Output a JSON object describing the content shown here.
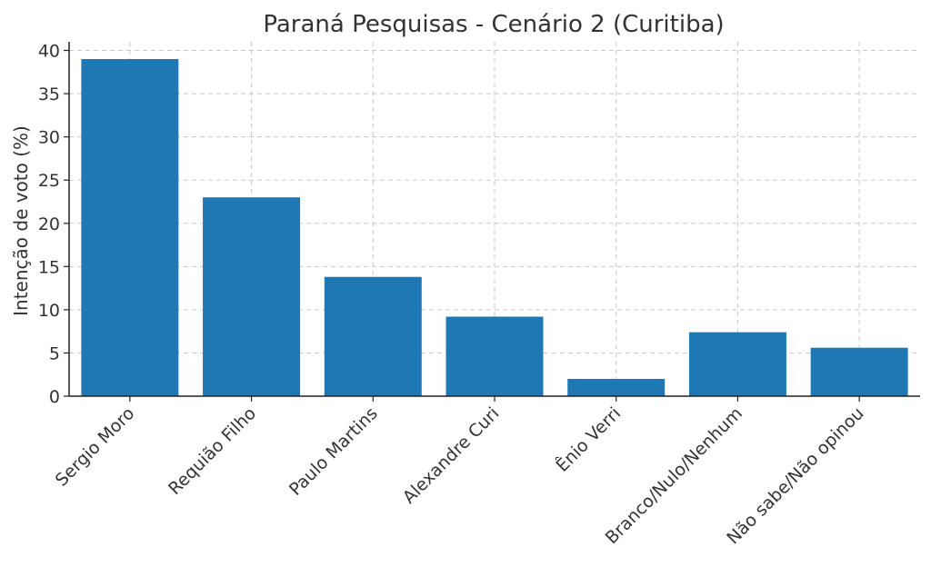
{
  "chart_data": {
    "type": "bar",
    "title": "Paraná Pesquisas - Cenário 2 (Curitiba)",
    "xlabel": "",
    "ylabel": "Intenção de voto (%)",
    "categories": [
      "Sergio Moro",
      "Requião Filho",
      "Paulo Martins",
      "Alexandre Curi",
      "Ênio Verri",
      "Branco/Nulo/Nenhum",
      "Não sabe/Não opinou"
    ],
    "values": [
      39.0,
      23.0,
      13.8,
      9.2,
      2.0,
      7.4,
      5.6
    ],
    "ylim": [
      0,
      41
    ],
    "yticks": [
      0,
      5,
      10,
      15,
      20,
      25,
      30,
      35,
      40
    ],
    "grid": true,
    "bar_color": "#1f77b4",
    "xtick_rotation": -45
  }
}
